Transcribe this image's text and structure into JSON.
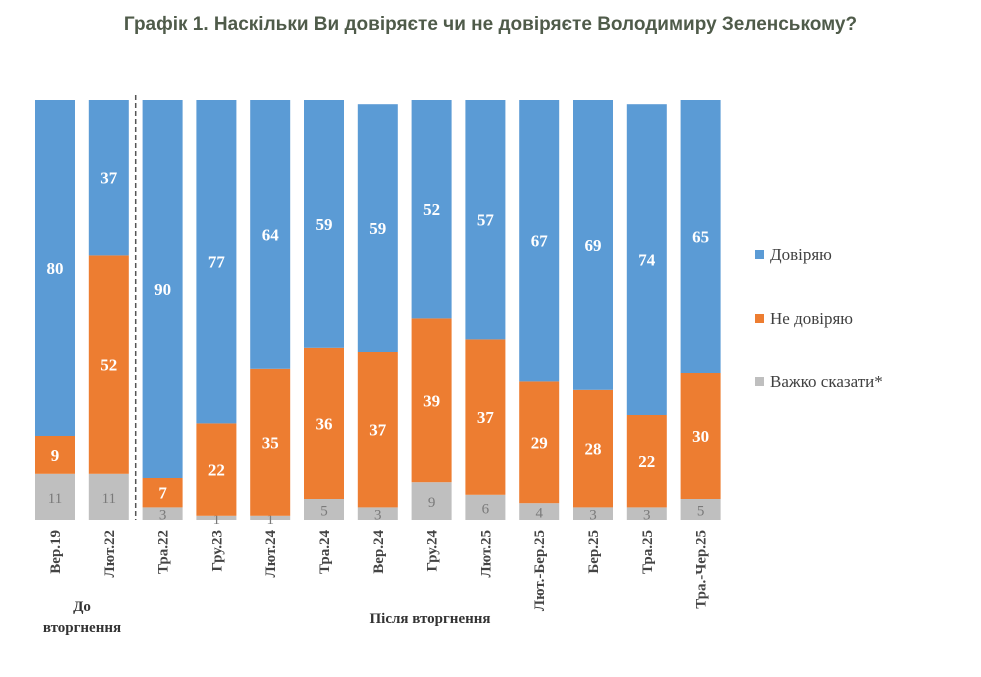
{
  "chart_data": {
    "type": "bar",
    "stacked": true,
    "title": "Графік 1. Наскільки Ви довіряєте чи не довіряєте Володимиру Зеленському?",
    "categories": [
      "Вер.19",
      "Лют.22",
      "Тра.22",
      "Гру.23",
      "Лют.24",
      "Тра.24",
      "Вер.24",
      "Гру.24",
      "Лют.25",
      "Лют.-Бер.25",
      "Бер.25",
      "Тра.25",
      "Тра.-Чер.25"
    ],
    "series": [
      {
        "name": "Важко сказати*",
        "color": "#bfbfbf",
        "values": [
          11,
          11,
          3,
          1,
          1,
          5,
          3,
          9,
          6,
          4,
          3,
          3,
          5
        ]
      },
      {
        "name": "Не довіряю",
        "color": "#ed7d31",
        "values": [
          9,
          52,
          7,
          22,
          35,
          36,
          37,
          39,
          37,
          29,
          28,
          22,
          30
        ]
      },
      {
        "name": "Довіряю",
        "color": "#5b9bd5",
        "values": [
          80,
          37,
          90,
          77,
          64,
          59,
          59,
          52,
          57,
          67,
          69,
          74,
          65
        ]
      }
    ],
    "groups": [
      {
        "label": "До вторгнення",
        "lines": [
          "До",
          "вторгнення"
        ]
      },
      {
        "label": "Після вторгнення"
      }
    ],
    "ylim": [
      0,
      100
    ],
    "legend_position": "right"
  }
}
